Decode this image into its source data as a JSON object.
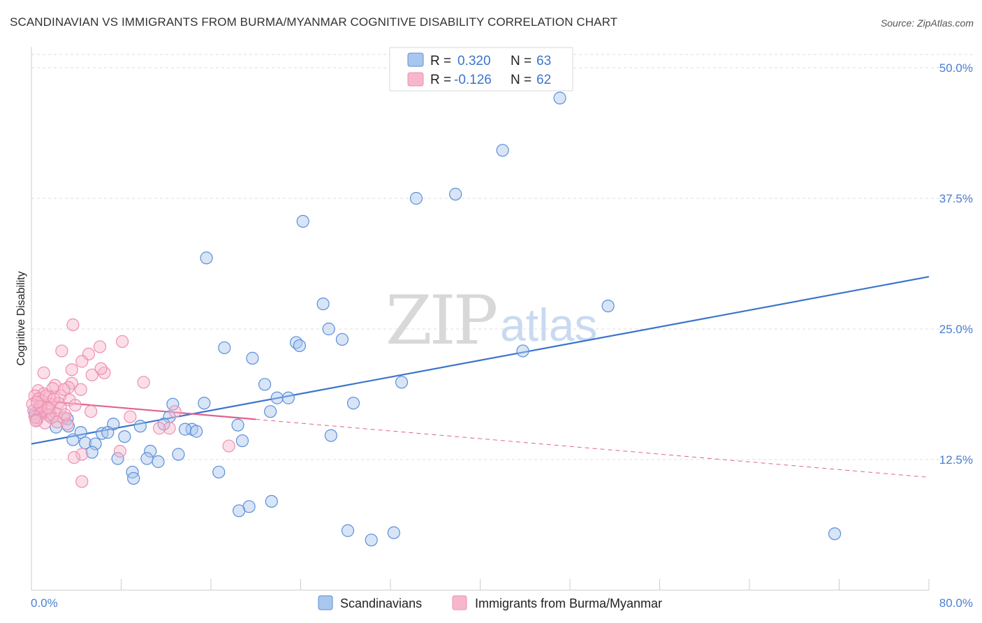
{
  "title": "SCANDINAVIAN VS IMMIGRANTS FROM BURMA/MYANMAR COGNITIVE DISABILITY CORRELATION CHART",
  "source": "Source: ZipAtlas.com",
  "watermark": {
    "zip": "ZIP",
    "atlas": "atlas"
  },
  "legend": {
    "r_label": "R =",
    "n_label": "N =",
    "series1": {
      "r": "0.320",
      "n": "63"
    },
    "series2": {
      "r": "-0.126",
      "n": "62"
    }
  },
  "colors": {
    "blue": "#3b74cc",
    "blue_fill": "#a9c6ee",
    "blue_stroke": "#5b8fd8",
    "pink": "#e0628f",
    "pink_fill": "#f6b7cb",
    "pink_stroke": "#ee8fb0",
    "grid": "#dddddd",
    "axis": "#cccccc"
  },
  "chart_data": {
    "type": "scatter",
    "title": "SCANDINAVIAN VS IMMIGRANTS FROM BURMA/MYANMAR COGNITIVE DISABILITY CORRELATION CHART",
    "xlabel": "",
    "ylabel": "Cognitive Disability",
    "xlim": [
      0,
      80
    ],
    "ylim": [
      0,
      52
    ],
    "x_tick_labels": [
      "0.0%",
      "80.0%"
    ],
    "y_ticks": [
      12.5,
      25,
      37.5,
      50
    ],
    "y_tick_labels": [
      "12.5%",
      "25.0%",
      "37.5%",
      "50.0%"
    ],
    "grid": true,
    "series": [
      {
        "name": "Scandinavians",
        "r": 0.32,
        "n": 63,
        "trend": {
          "x0": 0,
          "y0": 14.0,
          "x1": 80,
          "y1": 30.0,
          "solid_to": 80
        },
        "points": [
          [
            47.1,
            47.1
          ],
          [
            42.0,
            42.1
          ],
          [
            37.8,
            37.9
          ],
          [
            34.3,
            37.5
          ],
          [
            24.2,
            35.3
          ],
          [
            15.6,
            31.8
          ],
          [
            26.0,
            27.4
          ],
          [
            51.4,
            27.2
          ],
          [
            26.5,
            25.0
          ],
          [
            27.7,
            24.0
          ],
          [
            23.6,
            23.7
          ],
          [
            23.9,
            23.4
          ],
          [
            17.2,
            23.2
          ],
          [
            43.8,
            22.9
          ],
          [
            19.7,
            22.2
          ],
          [
            20.8,
            19.7
          ],
          [
            33.0,
            19.9
          ],
          [
            21.9,
            18.4
          ],
          [
            22.9,
            18.4
          ],
          [
            28.7,
            17.9
          ],
          [
            15.4,
            17.9
          ],
          [
            12.6,
            17.8
          ],
          [
            21.3,
            17.1
          ],
          [
            12.3,
            16.6
          ],
          [
            0.3,
            16.9
          ],
          [
            0.9,
            16.9
          ],
          [
            1.6,
            16.7
          ],
          [
            0.5,
            16.5
          ],
          [
            3.2,
            16.4
          ],
          [
            2.2,
            15.6
          ],
          [
            3.3,
            15.7
          ],
          [
            7.3,
            15.9
          ],
          [
            9.7,
            15.7
          ],
          [
            11.8,
            15.9
          ],
          [
            18.4,
            15.8
          ],
          [
            14.3,
            15.4
          ],
          [
            13.7,
            15.4
          ],
          [
            14.7,
            15.2
          ],
          [
            4.4,
            15.1
          ],
          [
            6.3,
            15.0
          ],
          [
            6.8,
            15.1
          ],
          [
            26.7,
            14.8
          ],
          [
            8.3,
            14.7
          ],
          [
            3.7,
            14.4
          ],
          [
            4.8,
            14.1
          ],
          [
            5.7,
            14.0
          ],
          [
            18.8,
            14.3
          ],
          [
            10.6,
            13.3
          ],
          [
            13.1,
            13.0
          ],
          [
            5.4,
            13.2
          ],
          [
            7.7,
            12.6
          ],
          [
            10.3,
            12.6
          ],
          [
            11.3,
            12.3
          ],
          [
            9.0,
            11.3
          ],
          [
            16.7,
            11.3
          ],
          [
            9.1,
            10.7
          ],
          [
            21.4,
            8.5
          ],
          [
            19.4,
            8.0
          ],
          [
            18.5,
            7.6
          ],
          [
            28.2,
            5.7
          ],
          [
            30.3,
            4.8
          ],
          [
            32.3,
            5.5
          ],
          [
            71.6,
            5.4
          ]
        ]
      },
      {
        "name": "Immigrants from Burma/Myanmar",
        "r": -0.126,
        "n": 62,
        "trend": {
          "x0": 0,
          "y0": 18.2,
          "x1": 80,
          "y1": 10.8,
          "solid_to": 20
        },
        "points": [
          [
            3.7,
            25.4
          ],
          [
            8.1,
            23.8
          ],
          [
            6.1,
            23.3
          ],
          [
            2.7,
            22.9
          ],
          [
            5.1,
            22.6
          ],
          [
            4.5,
            21.9
          ],
          [
            3.6,
            21.1
          ],
          [
            6.5,
            20.8
          ],
          [
            1.1,
            20.8
          ],
          [
            5.4,
            20.6
          ],
          [
            10.0,
            19.9
          ],
          [
            3.6,
            19.8
          ],
          [
            2.1,
            19.6
          ],
          [
            3.3,
            19.4
          ],
          [
            1.9,
            19.3
          ],
          [
            4.4,
            19.2
          ],
          [
            0.6,
            19.1
          ],
          [
            1.1,
            18.8
          ],
          [
            2.6,
            18.6
          ],
          [
            0.3,
            18.6
          ],
          [
            1.6,
            18.5
          ],
          [
            0.6,
            18.3
          ],
          [
            3.4,
            18.2
          ],
          [
            1.0,
            18.1
          ],
          [
            2.4,
            17.9
          ],
          [
            0.1,
            17.8
          ],
          [
            1.7,
            17.8
          ],
          [
            3.9,
            17.7
          ],
          [
            0.9,
            17.5
          ],
          [
            2.6,
            17.4
          ],
          [
            0.2,
            17.2
          ],
          [
            1.4,
            17.2
          ],
          [
            5.3,
            17.1
          ],
          [
            12.8,
            17.1
          ],
          [
            0.9,
            17.0
          ],
          [
            2.2,
            16.9
          ],
          [
            1.5,
            16.8
          ],
          [
            0.7,
            16.7
          ],
          [
            0.3,
            16.6
          ],
          [
            2.9,
            16.5
          ],
          [
            1.8,
            16.5
          ],
          [
            8.8,
            16.6
          ],
          [
            0.5,
            16.3
          ],
          [
            2.3,
            16.1
          ],
          [
            1.2,
            16.0
          ],
          [
            3.2,
            15.9
          ],
          [
            12.3,
            15.5
          ],
          [
            11.4,
            15.5
          ],
          [
            17.6,
            13.8
          ],
          [
            7.9,
            13.3
          ],
          [
            4.5,
            13.0
          ],
          [
            3.8,
            12.7
          ],
          [
            4.5,
            10.4
          ],
          [
            0.4,
            16.2
          ],
          [
            1.3,
            18.6
          ],
          [
            6.2,
            21.2
          ],
          [
            2.9,
            19.2
          ],
          [
            0.8,
            17.6
          ],
          [
            2.0,
            18.3
          ],
          [
            3.0,
            16.8
          ],
          [
            1.5,
            17.4
          ],
          [
            0.5,
            18.0
          ]
        ]
      }
    ]
  }
}
